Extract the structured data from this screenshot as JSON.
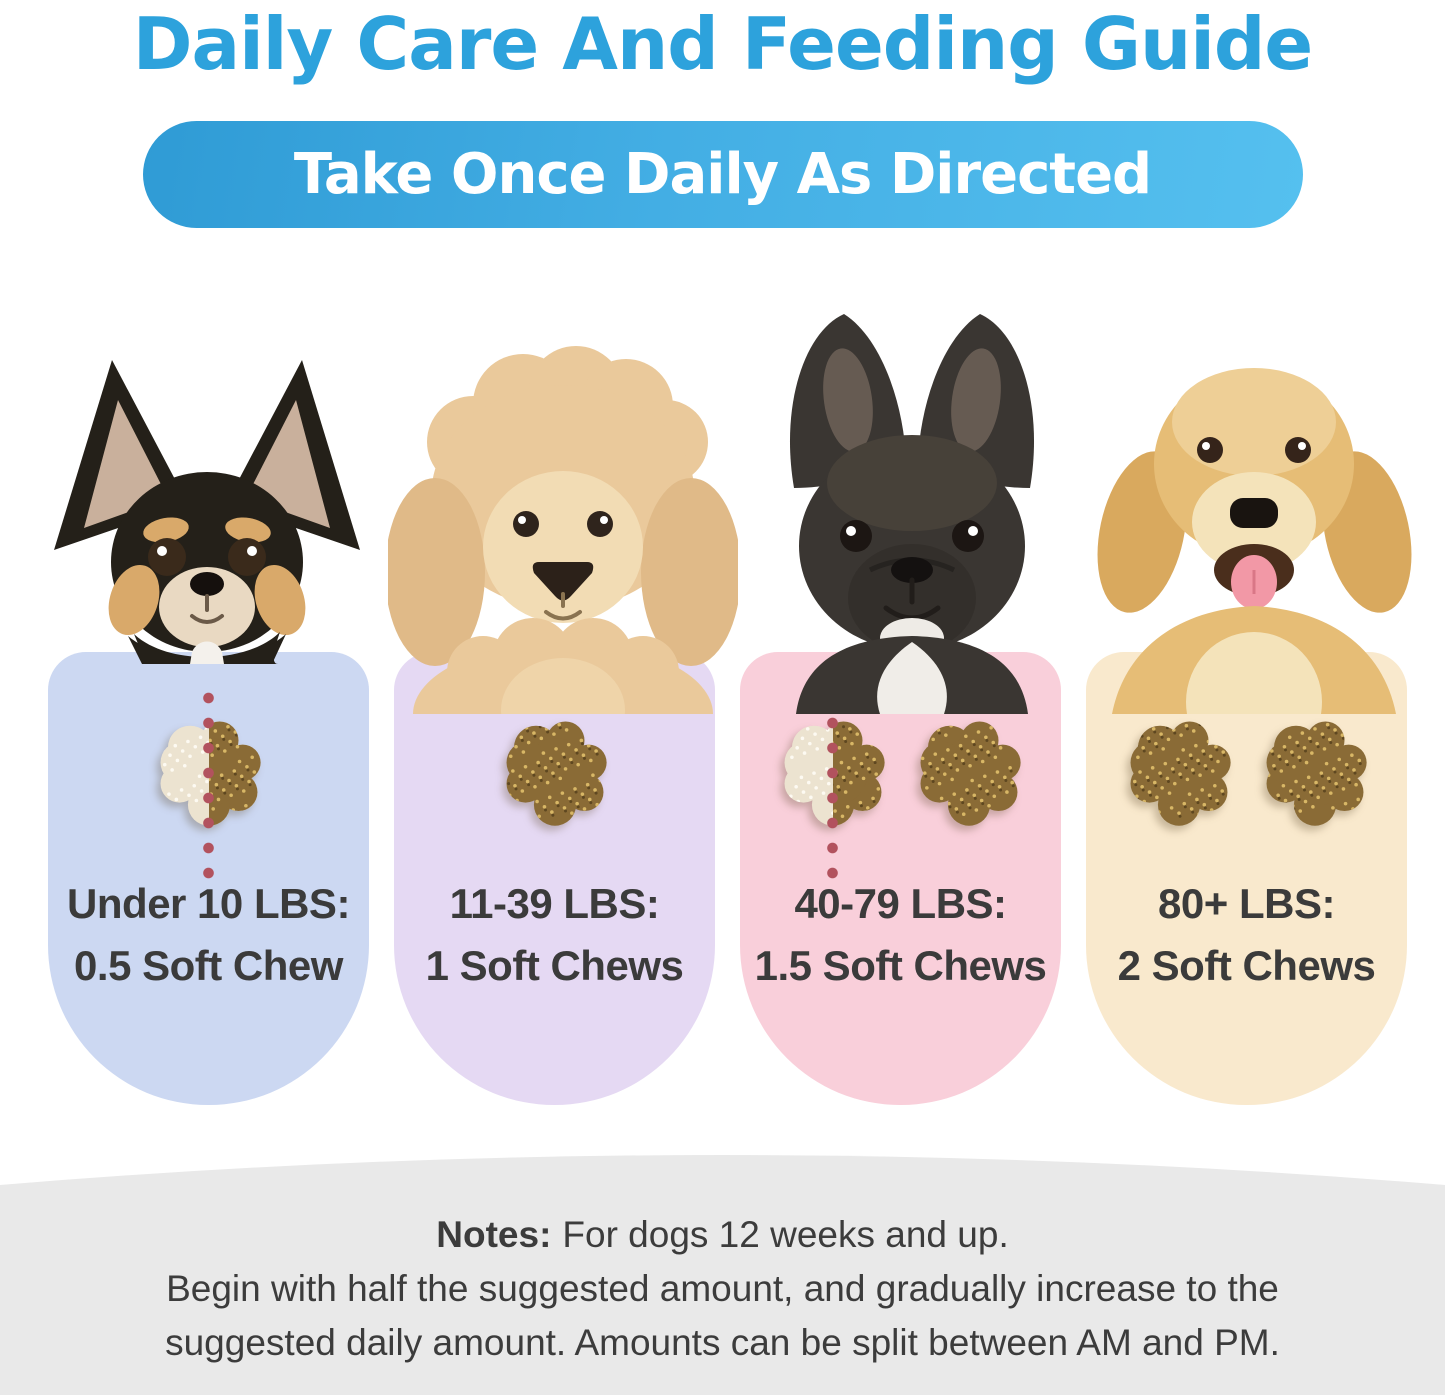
{
  "header": {
    "title": "Daily Care And Feeding Guide",
    "banner": "Take Once Daily As Directed",
    "title_color": "#2da2dc",
    "banner_gradient": [
      "#2f9bd5",
      "#55c0ef"
    ]
  },
  "cards": [
    {
      "dog": "chihuahua",
      "bg": "#ccd8f2",
      "weight_label": "Under 10 LBS:",
      "dose_label": "0.5 Soft Chew",
      "chews": {
        "half": true,
        "full": 0
      }
    },
    {
      "dog": "poodle",
      "bg": "#e5d9f3",
      "weight_label": "11-39 LBS:",
      "dose_label": "1 Soft Chews",
      "chews": {
        "half": false,
        "full": 1
      }
    },
    {
      "dog": "french-bulldog",
      "bg": "#f9cfda",
      "weight_label": "40-79 LBS:",
      "dose_label": "1.5 Soft Chews",
      "chews": {
        "half": true,
        "full": 1
      }
    },
    {
      "dog": "golden-retriever",
      "bg": "#f9e9cd",
      "weight_label": "80+ LBS:",
      "dose_label": "2 Soft Chews",
      "chews": {
        "half": false,
        "full": 2
      }
    }
  ],
  "notes": {
    "label": "Notes:",
    "line1": "For dogs 12 weeks and up.",
    "line2": "Begin with half the suggested amount, and gradually increase to the",
    "line3": "suggested daily amount. Amounts can be split between AM and PM."
  },
  "colors": {
    "chew_brown": "#8a6b36",
    "chew_brown_speckle_light": "#d8b766",
    "chew_brown_speckle_dark": "#5e4720",
    "chew_ghost": "#ece3d0",
    "chew_ghost_speckle": "#fdfaf2",
    "dot_line": "#b2525e",
    "footer_gray": "#e9e9e9",
    "label_text": "#3b3b3b"
  }
}
